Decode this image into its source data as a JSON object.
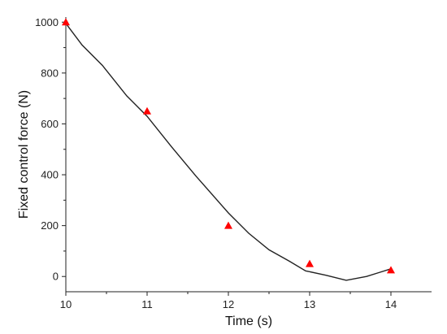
{
  "chart_data": {
    "type": "line",
    "xlabel": "Time (s)",
    "ylabel": "Fixed control force (N)",
    "xlim": [
      10,
      14.5
    ],
    "ylim": [
      -60,
      1020
    ],
    "x_ticks": [
      10,
      11,
      12,
      13,
      14
    ],
    "y_ticks": [
      0,
      200,
      400,
      600,
      800,
      1000
    ],
    "grid": false,
    "series": [
      {
        "kind": "line",
        "color": "#222222",
        "x": [
          10,
          10.2,
          10.45,
          10.75,
          11,
          11.3,
          11.6,
          12,
          12.25,
          12.5,
          12.75,
          12.95,
          13.2,
          13.45,
          13.7,
          13.85,
          14
        ],
        "y": [
          995,
          910,
          830,
          710,
          630,
          510,
          395,
          250,
          170,
          105,
          60,
          22,
          5,
          -15,
          0,
          15,
          30
        ]
      },
      {
        "kind": "scatter",
        "marker": "triangle",
        "color": "#ff0000",
        "x": [
          10,
          11,
          12,
          13,
          14
        ],
        "y": [
          1000,
          650,
          200,
          50,
          25
        ]
      }
    ]
  }
}
